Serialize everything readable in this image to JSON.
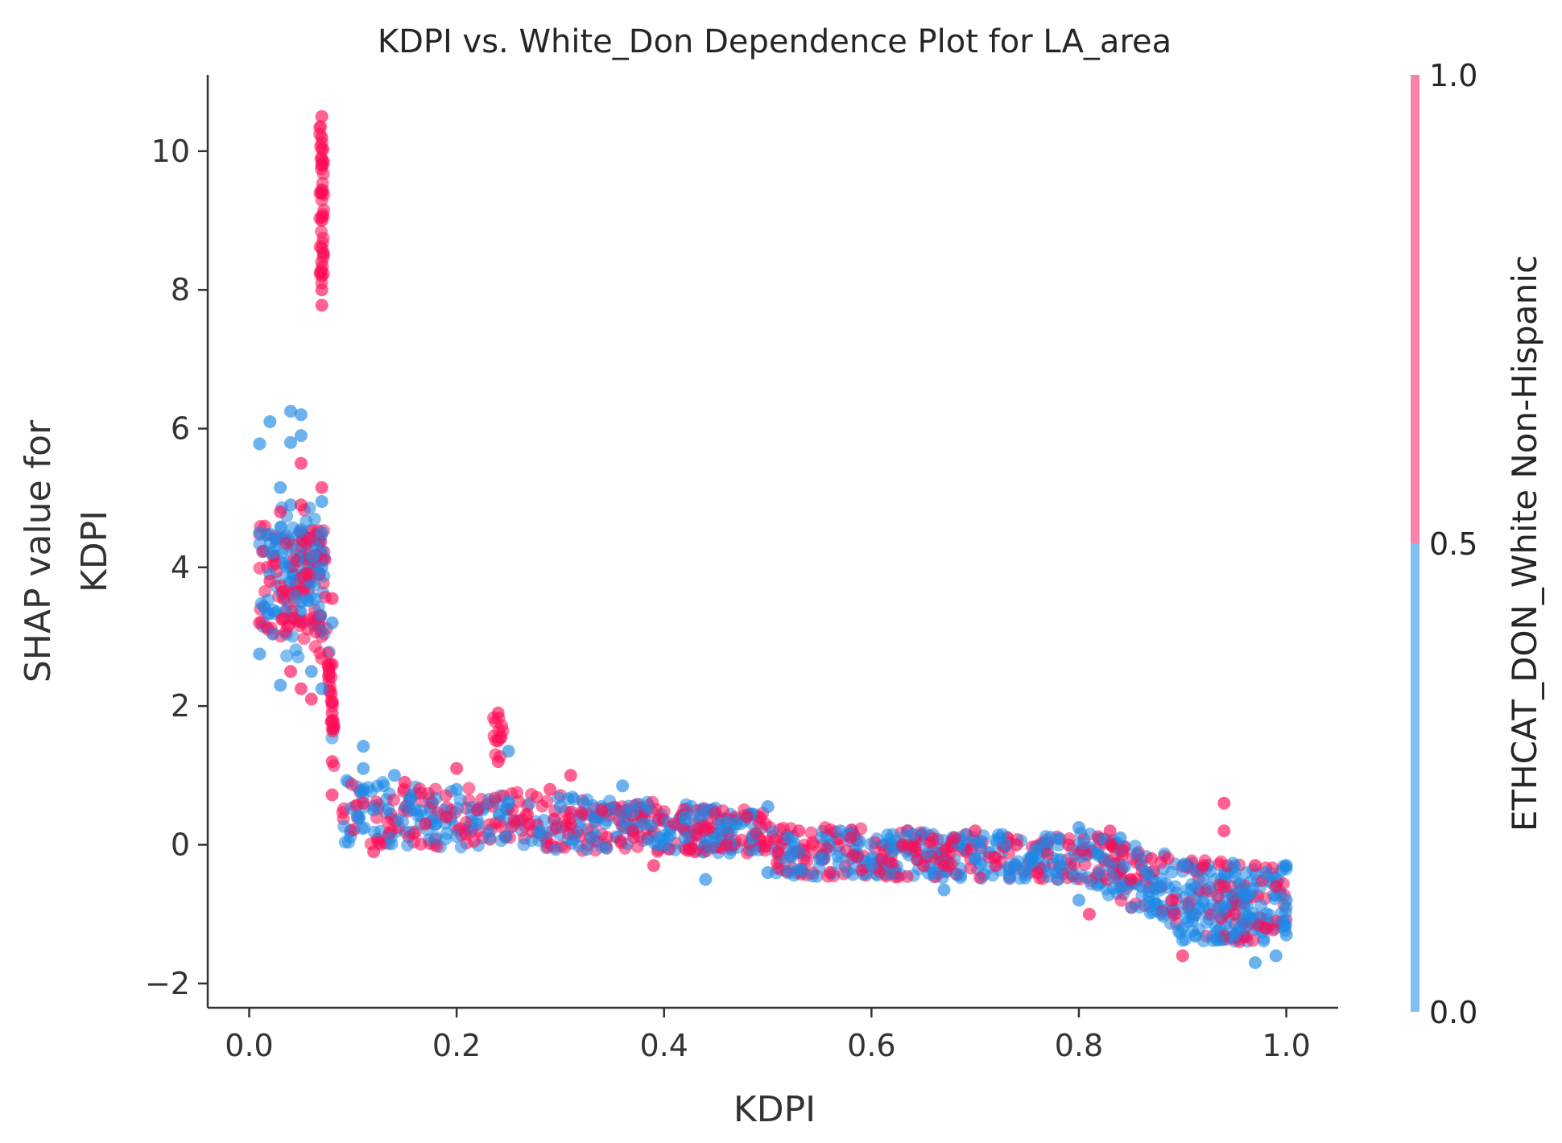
{
  "chart_data": {
    "type": "scatter",
    "title": "KDPI vs. White_Don Dependence Plot for LA_area",
    "xlabel": "KDPI",
    "ylabel_lines": [
      "SHAP value for",
      "KDPI"
    ],
    "xlim": [
      -0.04,
      1.05
    ],
    "ylim": [
      -2.35,
      11.1
    ],
    "x_ticks": [
      0.0,
      0.2,
      0.4,
      0.6,
      0.8,
      1.0
    ],
    "x_tick_labels": [
      "0.0",
      "0.2",
      "0.4",
      "0.6",
      "0.8",
      "1.0"
    ],
    "y_ticks": [
      -2,
      0,
      2,
      4,
      6,
      8,
      10
    ],
    "y_tick_labels": [
      "−2",
      "0",
      "2",
      "4",
      "6",
      "8",
      "10"
    ],
    "grid": false,
    "colorbar": {
      "label": "ETHCAT_DON_White Non-Hispanic",
      "ticks": [
        0.0,
        0.5,
        1.0
      ],
      "tick_labels": [
        "0.0",
        "0.5",
        "1.0"
      ],
      "low_color": "#7fbff4",
      "high_color": "#f783a8"
    },
    "point_colors": {
      "group_0": "#1e88e5",
      "group_1": "#ff0d57"
    },
    "series": [
      {
        "group": 0,
        "points": [
          [
            0.01,
            5.78
          ],
          [
            0.02,
            6.1
          ],
          [
            0.01,
            4.5
          ],
          [
            0.01,
            2.75
          ],
          [
            0.02,
            3.9
          ],
          [
            0.03,
            5.15
          ],
          [
            0.03,
            2.3
          ],
          [
            0.04,
            6.25
          ],
          [
            0.04,
            5.8
          ],
          [
            0.04,
            4.9
          ],
          [
            0.05,
            6.2
          ],
          [
            0.05,
            5.9
          ],
          [
            0.05,
            3.5
          ],
          [
            0.06,
            2.5
          ],
          [
            0.07,
            4.95
          ],
          [
            0.07,
            4.5
          ],
          [
            0.07,
            2.25
          ],
          [
            0.07,
            4.0
          ],
          [
            0.08,
            3.2
          ],
          [
            0.11,
            1.42
          ],
          [
            0.11,
            1.1
          ],
          [
            0.12,
            0.5
          ],
          [
            0.14,
            1.0
          ],
          [
            0.16,
            0.5
          ],
          [
            0.18,
            0.3
          ],
          [
            0.2,
            0.8
          ],
          [
            0.22,
            0.3
          ],
          [
            0.25,
            1.35
          ],
          [
            0.25,
            0.6
          ],
          [
            0.28,
            0.2
          ],
          [
            0.3,
            0.55
          ],
          [
            0.33,
            0.1
          ],
          [
            0.36,
            0.85
          ],
          [
            0.38,
            0.3
          ],
          [
            0.4,
            0.0
          ],
          [
            0.42,
            0.4
          ],
          [
            0.44,
            -0.5
          ],
          [
            0.45,
            0.1
          ],
          [
            0.47,
            0.3
          ],
          [
            0.5,
            0.55
          ],
          [
            0.5,
            -0.4
          ],
          [
            0.52,
            0.1
          ],
          [
            0.55,
            -0.2
          ],
          [
            0.57,
            0.2
          ],
          [
            0.6,
            -0.3
          ],
          [
            0.62,
            -0.1
          ],
          [
            0.64,
            0.15
          ],
          [
            0.66,
            -0.4
          ],
          [
            0.67,
            -0.65
          ],
          [
            0.7,
            -0.2
          ],
          [
            0.73,
            0.0
          ],
          [
            0.75,
            -0.3
          ],
          [
            0.78,
            -0.5
          ],
          [
            0.8,
            0.25
          ],
          [
            0.8,
            -0.8
          ],
          [
            0.82,
            -0.4
          ],
          [
            0.84,
            0.1
          ],
          [
            0.86,
            -0.6
          ],
          [
            0.88,
            -1.0
          ],
          [
            0.9,
            -1.2
          ],
          [
            0.92,
            -0.5
          ],
          [
            0.94,
            -0.9
          ],
          [
            0.95,
            -1.3
          ],
          [
            0.96,
            -0.7
          ],
          [
            0.97,
            -1.7
          ],
          [
            0.98,
            -0.4
          ],
          [
            0.99,
            -1.6
          ],
          [
            1.0,
            -0.3
          ],
          [
            1.0,
            -1.3
          ],
          [
            1.0,
            -0.8
          ]
        ]
      },
      {
        "group": 1,
        "points": [
          [
            0.07,
            10.5
          ],
          [
            0.07,
            10.2
          ],
          [
            0.07,
            9.8
          ],
          [
            0.07,
            9.4
          ],
          [
            0.07,
            9.0
          ],
          [
            0.07,
            8.6
          ],
          [
            0.07,
            8.2
          ],
          [
            0.07,
            8.0
          ],
          [
            0.07,
            7.78
          ],
          [
            0.01,
            3.2
          ],
          [
            0.02,
            3.8
          ],
          [
            0.03,
            4.8
          ],
          [
            0.04,
            2.5
          ],
          [
            0.05,
            5.5
          ],
          [
            0.05,
            4.9
          ],
          [
            0.05,
            2.25
          ],
          [
            0.06,
            2.1
          ],
          [
            0.07,
            5.15
          ],
          [
            0.08,
            3.55
          ],
          [
            0.08,
            2.6
          ],
          [
            0.08,
            1.9
          ],
          [
            0.08,
            1.2
          ],
          [
            0.08,
            0.72
          ],
          [
            0.11,
            0.6
          ],
          [
            0.12,
            -0.1
          ],
          [
            0.15,
            0.9
          ],
          [
            0.17,
            0.3
          ],
          [
            0.19,
            0.4
          ],
          [
            0.2,
            1.1
          ],
          [
            0.22,
            0.5
          ],
          [
            0.24,
            1.9
          ],
          [
            0.24,
            1.5
          ],
          [
            0.24,
            1.2
          ],
          [
            0.27,
            0.3
          ],
          [
            0.29,
            0.8
          ],
          [
            0.31,
            1.0
          ],
          [
            0.31,
            0.3
          ],
          [
            0.34,
            0.5
          ],
          [
            0.37,
            0.2
          ],
          [
            0.39,
            -0.3
          ],
          [
            0.41,
            0.3
          ],
          [
            0.43,
            -0.1
          ],
          [
            0.46,
            0.0
          ],
          [
            0.48,
            0.4
          ],
          [
            0.51,
            -0.1
          ],
          [
            0.53,
            0.2
          ],
          [
            0.56,
            -0.4
          ],
          [
            0.58,
            0.1
          ],
          [
            0.61,
            -0.2
          ],
          [
            0.63,
            0.0
          ],
          [
            0.65,
            -0.3
          ],
          [
            0.68,
            0.1
          ],
          [
            0.7,
            0.2
          ],
          [
            0.72,
            -0.3
          ],
          [
            0.74,
            0.0
          ],
          [
            0.76,
            -0.4
          ],
          [
            0.79,
            0.0
          ],
          [
            0.81,
            -1.0
          ],
          [
            0.83,
            0.2
          ],
          [
            0.85,
            -0.5
          ],
          [
            0.87,
            -0.2
          ],
          [
            0.89,
            -0.8
          ],
          [
            0.9,
            -1.6
          ],
          [
            0.92,
            -0.3
          ],
          [
            0.94,
            0.6
          ],
          [
            0.94,
            0.2
          ],
          [
            0.94,
            -0.6
          ],
          [
            0.95,
            -1.0
          ],
          [
            0.97,
            -0.3
          ],
          [
            0.98,
            -1.2
          ],
          [
            0.99,
            -0.6
          ]
        ]
      }
    ]
  }
}
